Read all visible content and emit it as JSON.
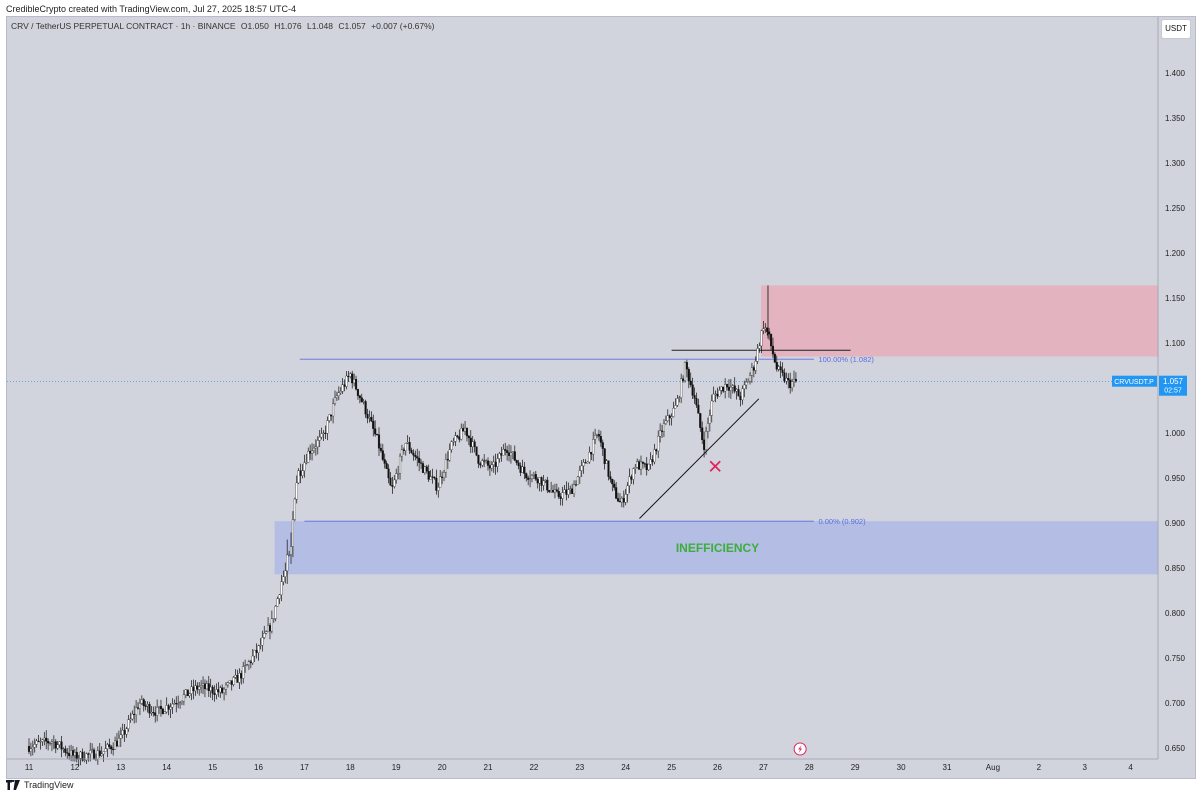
{
  "credit": "CredibleCrypto created with TradingView.com, Jul 27, 2025 18:57 UTC-4",
  "header": {
    "symbol": "CRV / TetherUS PERPETUAL CONTRACT · 1h · BINANCE",
    "o_label": "O",
    "o_value": "1.050",
    "h_label": "H",
    "h_value": "1.076",
    "l_label": "L",
    "l_value": "1.048",
    "c_label": "C",
    "c_value": "1.057",
    "change": "+0.007 (+0.67%)"
  },
  "currency_button": "USDT",
  "footer": {
    "brand": "TradingView"
  },
  "colors": {
    "background": "#d2d4dd",
    "resistance_zone": "#e3b3c0",
    "inefficiency_zone": "#b4bde4",
    "fib_line": "#5b6ee1",
    "price_tag": "#2196f3",
    "cross_mark": "#e0245e",
    "inefficiency_text": "#3cae3c"
  },
  "chart_data": {
    "type": "candlestick",
    "symbol": "CRV / TetherUS PERPETUAL CONTRACT",
    "timeframe": "1h",
    "exchange": "BINANCE",
    "y_axis": {
      "ticks": [
        "1.400",
        "1.350",
        "1.300",
        "1.250",
        "1.200",
        "1.150",
        "1.100",
        "1.050",
        "1.000",
        "0.950",
        "0.900",
        "0.850",
        "0.800",
        "0.750",
        "0.700",
        "0.650"
      ],
      "range": [
        0.63,
        1.44
      ]
    },
    "x_axis": {
      "ticks": [
        "11",
        "12",
        "13",
        "14",
        "15",
        "16",
        "17",
        "18",
        "19",
        "20",
        "21",
        "22",
        "23",
        "24",
        "25",
        "26",
        "27",
        "28",
        "29",
        "30",
        "31",
        "Aug",
        "2",
        "3",
        "4"
      ]
    },
    "price_path": [
      [
        11.0,
        0.652
      ],
      [
        11.5,
        0.658
      ],
      [
        12.0,
        0.64
      ],
      [
        12.6,
        0.645
      ],
      [
        13.0,
        0.66
      ],
      [
        13.4,
        0.7
      ],
      [
        13.8,
        0.69
      ],
      [
        14.3,
        0.705
      ],
      [
        14.7,
        0.718
      ],
      [
        15.2,
        0.712
      ],
      [
        15.6,
        0.73
      ],
      [
        16.0,
        0.76
      ],
      [
        16.3,
        0.79
      ],
      [
        16.5,
        0.835
      ],
      [
        16.7,
        0.86
      ],
      [
        16.8,
        0.945
      ],
      [
        17.1,
        0.98
      ],
      [
        17.4,
        0.995
      ],
      [
        17.7,
        1.04
      ],
      [
        18.0,
        1.065
      ],
      [
        18.3,
        1.03
      ],
      [
        18.6,
        0.99
      ],
      [
        18.9,
        0.935
      ],
      [
        19.2,
        0.99
      ],
      [
        19.6,
        0.96
      ],
      [
        19.9,
        0.94
      ],
      [
        20.2,
        0.985
      ],
      [
        20.5,
        1.005
      ],
      [
        20.8,
        0.97
      ],
      [
        21.1,
        0.96
      ],
      [
        21.4,
        0.985
      ],
      [
        21.8,
        0.955
      ],
      [
        22.1,
        0.95
      ],
      [
        22.5,
        0.93
      ],
      [
        22.8,
        0.935
      ],
      [
        23.1,
        0.965
      ],
      [
        23.4,
        1.0
      ],
      [
        23.7,
        0.94
      ],
      [
        23.9,
        0.92
      ],
      [
        24.2,
        0.965
      ],
      [
        24.5,
        0.96
      ],
      [
        24.8,
        1.005
      ],
      [
        25.1,
        1.03
      ],
      [
        25.3,
        1.075
      ],
      [
        25.5,
        1.04
      ],
      [
        25.7,
        0.985
      ],
      [
        25.9,
        1.04
      ],
      [
        26.2,
        1.055
      ],
      [
        26.5,
        1.04
      ],
      [
        26.8,
        1.075
      ],
      [
        27.0,
        1.12
      ],
      [
        27.1,
        1.11
      ],
      [
        27.3,
        1.07
      ],
      [
        27.55,
        1.055
      ],
      [
        27.75,
        1.057
      ]
    ],
    "annotations": [
      {
        "type": "fib_level",
        "label": "100.00% (1.082)",
        "price": 1.082
      },
      {
        "type": "fib_level",
        "label": "0.00% (0.902)",
        "price": 0.902
      },
      {
        "type": "zone",
        "label": "",
        "price_from": 1.085,
        "price_to": 1.164
      },
      {
        "type": "zone",
        "label": "INEFFICIENCY",
        "price_from": 0.843,
        "price_to": 0.902
      },
      {
        "type": "trendline",
        "from": [
          24.3,
          0.905
        ],
        "to": [
          26.9,
          1.038
        ]
      },
      {
        "type": "horizontal_segment",
        "price": 1.092,
        "from": 25.0,
        "to": 28.9
      },
      {
        "type": "cross_mark",
        "x": 25.95,
        "price": 0.963
      }
    ],
    "last_price": {
      "symbol_tag": "CRVUSDT.P",
      "price": "1.057",
      "countdown": "02:57"
    }
  }
}
